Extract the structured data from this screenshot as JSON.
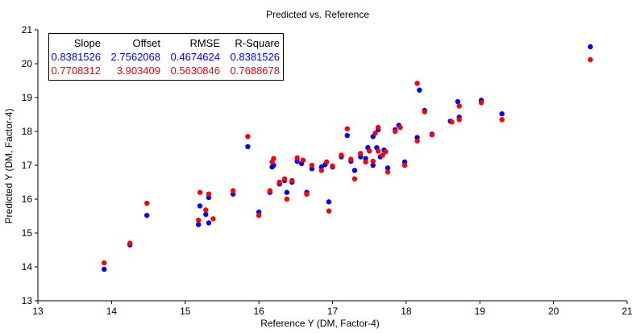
{
  "colors": {
    "series_1": "#0000ff",
    "series_2": "#ff0000",
    "axis": "#000000",
    "background": "#ffffff"
  },
  "chart_data": {
    "type": "scatter",
    "title": "Predicted vs. Reference",
    "xlabel": "Reference Y (DM, Factor-4)",
    "ylabel": "Predicted Y (DM, Factor-4)",
    "xlim": [
      13,
      21
    ],
    "ylim": [
      13,
      21
    ],
    "x_ticks": [
      "13",
      "14",
      "15",
      "16",
      "17",
      "18",
      "19",
      "20",
      "21"
    ],
    "y_ticks": [
      "13",
      "14",
      "15",
      "16",
      "17",
      "18",
      "19",
      "20",
      "21"
    ],
    "grid": false,
    "stats_table": {
      "headers": [
        "Slope",
        "Offset",
        "RMSE",
        "R-Square"
      ],
      "rows": [
        {
          "color": "#0000ff",
          "values": [
            "0.8381526",
            "2.7562068",
            "0.4674624",
            "0.8381526"
          ]
        },
        {
          "color": "#ff0000",
          "values": [
            "0.7708312",
            "3.903409",
            "0.5630846",
            "0.7688678"
          ]
        }
      ]
    },
    "series": [
      {
        "color": "#0000ff",
        "points": [
          [
            13.9,
            13.93
          ],
          [
            14.25,
            14.65
          ],
          [
            14.48,
            15.52
          ],
          [
            15.18,
            15.25
          ],
          [
            15.2,
            15.8
          ],
          [
            15.28,
            15.55
          ],
          [
            15.32,
            16.05
          ],
          [
            15.32,
            15.3
          ],
          [
            15.65,
            16.15
          ],
          [
            15.85,
            17.55
          ],
          [
            16.0,
            15.62
          ],
          [
            16.15,
            16.2
          ],
          [
            16.18,
            16.95
          ],
          [
            16.2,
            17.0
          ],
          [
            16.28,
            16.45
          ],
          [
            16.35,
            16.55
          ],
          [
            16.38,
            16.2
          ],
          [
            16.45,
            16.5
          ],
          [
            16.52,
            17.12
          ],
          [
            16.58,
            17.05
          ],
          [
            16.65,
            16.2
          ],
          [
            16.72,
            16.9
          ],
          [
            16.85,
            16.95
          ],
          [
            16.9,
            17.02
          ],
          [
            16.95,
            15.92
          ],
          [
            17.0,
            16.95
          ],
          [
            17.12,
            17.25
          ],
          [
            17.2,
            17.88
          ],
          [
            17.25,
            17.12
          ],
          [
            17.3,
            16.85
          ],
          [
            17.38,
            17.25
          ],
          [
            17.45,
            17.2
          ],
          [
            17.48,
            17.52
          ],
          [
            17.55,
            17.0
          ],
          [
            17.55,
            17.85
          ],
          [
            17.6,
            17.52
          ],
          [
            17.62,
            18.05
          ],
          [
            17.65,
            17.25
          ],
          [
            17.7,
            17.45
          ],
          [
            17.75,
            16.92
          ],
          [
            17.85,
            18.05
          ],
          [
            17.9,
            18.18
          ],
          [
            17.98,
            17.1
          ],
          [
            18.15,
            17.82
          ],
          [
            18.18,
            19.22
          ],
          [
            18.25,
            18.62
          ],
          [
            18.35,
            17.92
          ],
          [
            18.6,
            18.3
          ],
          [
            18.7,
            18.88
          ],
          [
            18.72,
            18.42
          ],
          [
            19.02,
            18.92
          ],
          [
            19.3,
            18.52
          ],
          [
            20.5,
            20.5
          ]
        ]
      },
      {
        "color": "#ff0000",
        "points": [
          [
            13.9,
            14.12
          ],
          [
            14.25,
            14.7
          ],
          [
            14.48,
            15.88
          ],
          [
            15.18,
            15.38
          ],
          [
            15.2,
            16.2
          ],
          [
            15.28,
            15.68
          ],
          [
            15.32,
            16.15
          ],
          [
            15.38,
            15.42
          ],
          [
            15.65,
            16.25
          ],
          [
            15.85,
            17.85
          ],
          [
            16.0,
            15.52
          ],
          [
            16.15,
            16.25
          ],
          [
            16.18,
            17.1
          ],
          [
            16.2,
            17.2
          ],
          [
            16.28,
            16.5
          ],
          [
            16.35,
            16.6
          ],
          [
            16.38,
            16.0
          ],
          [
            16.45,
            16.55
          ],
          [
            16.52,
            17.22
          ],
          [
            16.6,
            17.15
          ],
          [
            16.65,
            16.15
          ],
          [
            16.72,
            17.0
          ],
          [
            16.85,
            16.85
          ],
          [
            16.92,
            17.1
          ],
          [
            16.95,
            15.65
          ],
          [
            17.0,
            16.98
          ],
          [
            17.12,
            17.3
          ],
          [
            17.2,
            18.08
          ],
          [
            17.25,
            17.18
          ],
          [
            17.3,
            16.6
          ],
          [
            17.38,
            17.35
          ],
          [
            17.45,
            17.1
          ],
          [
            17.5,
            17.42
          ],
          [
            17.55,
            17.12
          ],
          [
            17.58,
            17.95
          ],
          [
            17.62,
            17.42
          ],
          [
            17.62,
            18.12
          ],
          [
            17.68,
            17.3
          ],
          [
            17.72,
            17.4
          ],
          [
            17.75,
            16.8
          ],
          [
            17.85,
            18.0
          ],
          [
            17.92,
            18.12
          ],
          [
            17.98,
            17.0
          ],
          [
            18.15,
            17.72
          ],
          [
            18.15,
            19.42
          ],
          [
            18.25,
            18.58
          ],
          [
            18.35,
            17.9
          ],
          [
            18.62,
            18.28
          ],
          [
            18.72,
            18.75
          ],
          [
            18.72,
            18.35
          ],
          [
            19.02,
            18.85
          ],
          [
            19.3,
            18.35
          ],
          [
            20.5,
            20.12
          ]
        ]
      }
    ]
  }
}
